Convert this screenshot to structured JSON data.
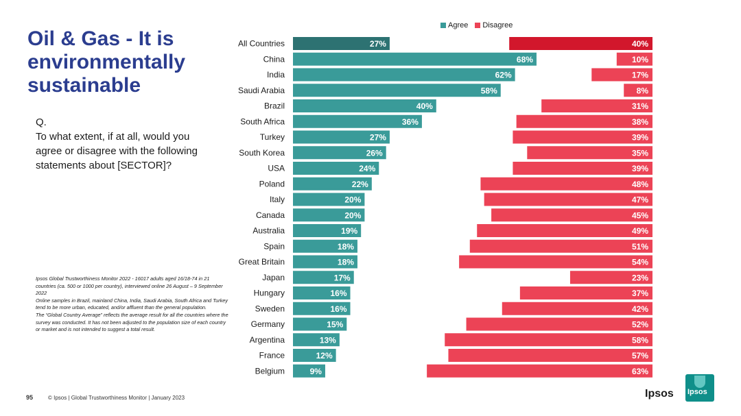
{
  "title": "Oil & Gas - It is environmentally sustainable",
  "question": {
    "prefix": "Q.",
    "text": "To what extent, if at all, would you agree or disagree with the following statements about [SECTOR]?"
  },
  "notes": [
    "Ipsos Global Trustworthiness Monitor 2022 - 16017 adults aged 16/18-74 in 21 countries (ca. 500 or 1000 per country), interviewed online 26 August – 9 September 2022",
    "Online samples in Brazil, mainland China, India, Saudi Arabia, South Africa and Turkey tend to be more urban, educated, and/or affluent than the general population.",
    "The “Global Country Average” reflects the average result for all the countries where the survey was conducted. It has not been adjusted to the population size of each country or market and is not intended to suggest a total result."
  ],
  "footer": {
    "page_number": "95",
    "text": "© Ipsos | Global Trustworthiness Monitor | January 2023"
  },
  "brand": {
    "wordmark": "Ipsos",
    "logo_text": "Ipsos"
  },
  "colors": {
    "agree": "#3a9b99",
    "agree_highlight": "#2d7272",
    "disagree": "#ec4356",
    "disagree_highlight": "#d2172c"
  },
  "chart_data": {
    "type": "bar",
    "orientation": "horizontal",
    "legend": [
      "Agree",
      "Disagree"
    ],
    "legend_position": "top-right",
    "value_suffix": "%",
    "xlim": [
      0,
      100
    ],
    "categories": [
      "All Countries",
      "China",
      "India",
      "Saudi Arabia",
      "Brazil",
      "South Africa",
      "Turkey",
      "South Korea",
      "USA",
      "Poland",
      "Italy",
      "Canada",
      "Australia",
      "Spain",
      "Great Britain",
      "Japan",
      "Hungary",
      "Sweden",
      "Germany",
      "Argentina",
      "France",
      "Belgium"
    ],
    "series": [
      {
        "name": "Agree",
        "values": [
          27,
          68,
          62,
          58,
          40,
          36,
          27,
          26,
          24,
          22,
          20,
          20,
          19,
          18,
          18,
          17,
          16,
          16,
          15,
          13,
          12,
          9
        ]
      },
      {
        "name": "Disagree",
        "values": [
          40,
          10,
          17,
          8,
          31,
          38,
          39,
          35,
          39,
          48,
          47,
          45,
          49,
          51,
          54,
          23,
          37,
          42,
          52,
          58,
          57,
          63
        ]
      }
    ]
  }
}
